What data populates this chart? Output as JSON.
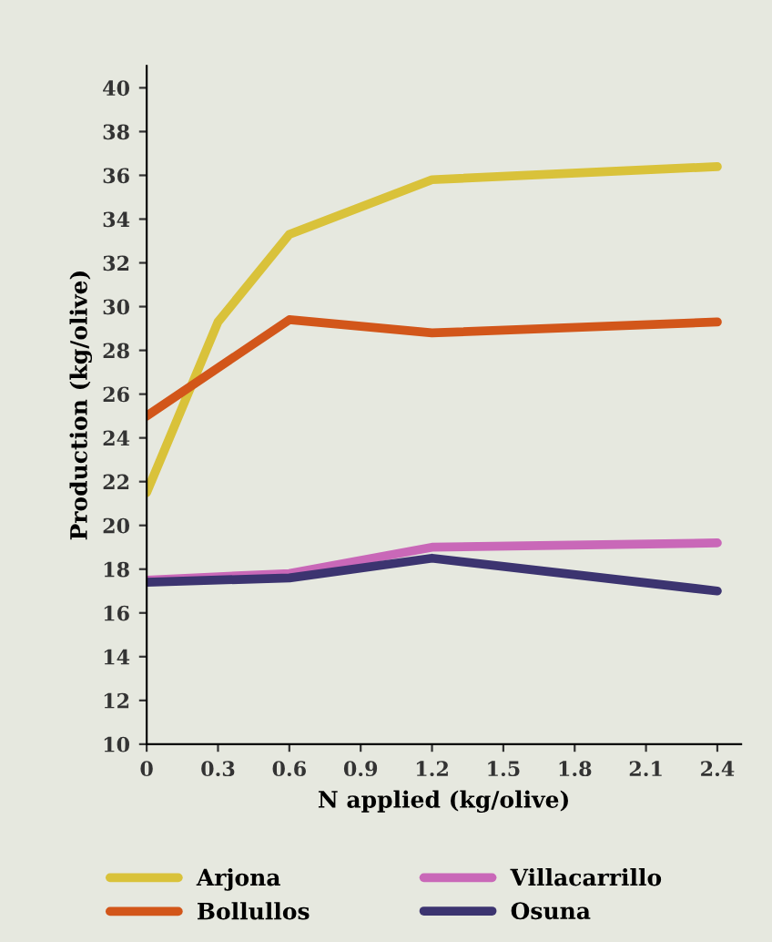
{
  "chart_data": {
    "type": "line",
    "xlabel": "N applied (kg/olive)",
    "ylabel": "Production (kg/olive)",
    "xlim": [
      0,
      2.5
    ],
    "xticks": [
      0,
      0.3,
      0.6,
      0.9,
      1.2,
      1.5,
      1.8,
      2.1,
      2.4
    ],
    "ylim": [
      10,
      41
    ],
    "yticks": [
      10,
      12,
      14,
      16,
      18,
      20,
      22,
      24,
      26,
      28,
      30,
      32,
      34,
      36,
      38,
      40
    ],
    "grid": false,
    "legend": "bottom",
    "marker": "none",
    "line_style": "solid",
    "series": [
      {
        "name": "Arjona",
        "color": "#d9c23a",
        "x": [
          0,
          0.3,
          0.6,
          1.2,
          2.4
        ],
        "values": [
          21.5,
          29.3,
          33.3,
          35.8,
          36.4
        ]
      },
      {
        "name": "Bollullos",
        "color": "#d2561a",
        "x": [
          0,
          0.6,
          1.2,
          2.4
        ],
        "values": [
          25,
          29.4,
          28.8,
          29.3
        ]
      },
      {
        "name": "Villacarrillo",
        "color": "#c968b8",
        "x": [
          0,
          0.6,
          1.2,
          2.4
        ],
        "values": [
          17.5,
          17.8,
          19,
          19.2
        ]
      },
      {
        "name": "Osuna",
        "color": "#3c3470",
        "x": [
          0,
          0.6,
          1.2,
          2.4
        ],
        "values": [
          17.4,
          17.6,
          18.5,
          17.0
        ]
      }
    ]
  }
}
